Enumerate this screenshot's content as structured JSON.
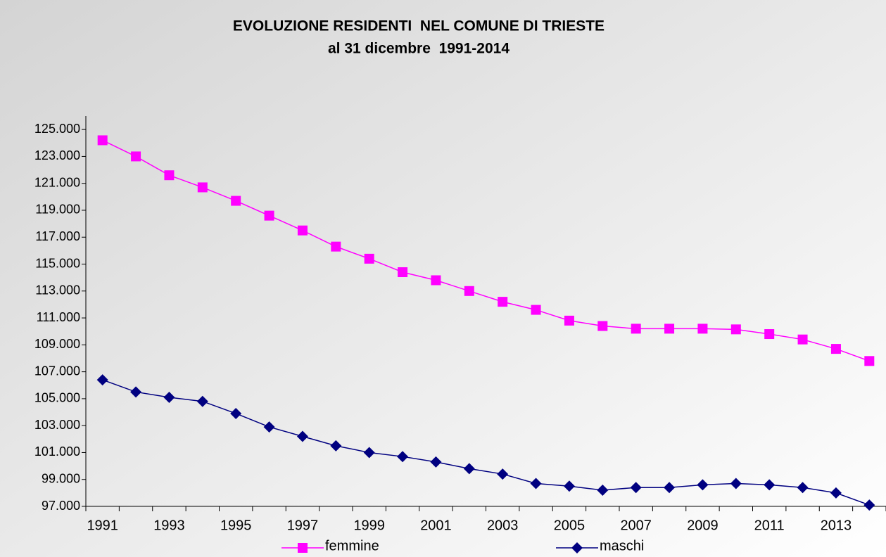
{
  "chart_data": {
    "type": "line",
    "title": "EVOLUZIONE RESIDENTI  NEL COMUNE DI TRIESTE",
    "subtitle": "al 31 dicembre  1991-2014",
    "categories": [
      "1991",
      null,
      "1993",
      null,
      "1995",
      null,
      "1997",
      null,
      "1999",
      null,
      "2001",
      null,
      "2003",
      null,
      "2005",
      null,
      "2007",
      null,
      "2009",
      null,
      "2011",
      null,
      "2013",
      null
    ],
    "series": [
      {
        "name": "femmine",
        "color": "#ff00ff",
        "marker": "square",
        "values": [
          124200,
          123000,
          121600,
          120700,
          119700,
          118600,
          117500,
          116300,
          115400,
          114400,
          113800,
          113000,
          112200,
          111600,
          110800,
          110400,
          110200,
          110200,
          110200,
          110150,
          109800,
          109400,
          108700,
          107800
        ]
      },
      {
        "name": "maschi",
        "color": "#000080",
        "marker": "diamond",
        "values": [
          106400,
          105500,
          105100,
          104800,
          103900,
          102900,
          102200,
          101500,
          101000,
          100700,
          100300,
          99800,
          99400,
          98700,
          98500,
          98200,
          98400,
          98400,
          98600,
          98700,
          98600,
          98400,
          98000,
          97100
        ]
      }
    ],
    "ylim": [
      97000,
      126000
    ],
    "yticks": [
      {
        "value": 97000,
        "label": "97.000"
      },
      {
        "value": 99000,
        "label": "99.000"
      },
      {
        "value": 101000,
        "label": "101.000"
      },
      {
        "value": 103000,
        "label": "103.000"
      },
      {
        "value": 105000,
        "label": "105.000"
      },
      {
        "value": 107000,
        "label": "107.000"
      },
      {
        "value": 109000,
        "label": "109.000"
      },
      {
        "value": 111000,
        "label": "111.000"
      },
      {
        "value": 113000,
        "label": "113.000"
      },
      {
        "value": 115000,
        "label": "115.000"
      },
      {
        "value": 117000,
        "label": "117.000"
      },
      {
        "value": 119000,
        "label": "119.000"
      },
      {
        "value": 121000,
        "label": "121.000"
      },
      {
        "value": 123000,
        "label": "123.000"
      },
      {
        "value": 125000,
        "label": "125.000"
      }
    ],
    "grid": false,
    "legend": "bottom"
  }
}
